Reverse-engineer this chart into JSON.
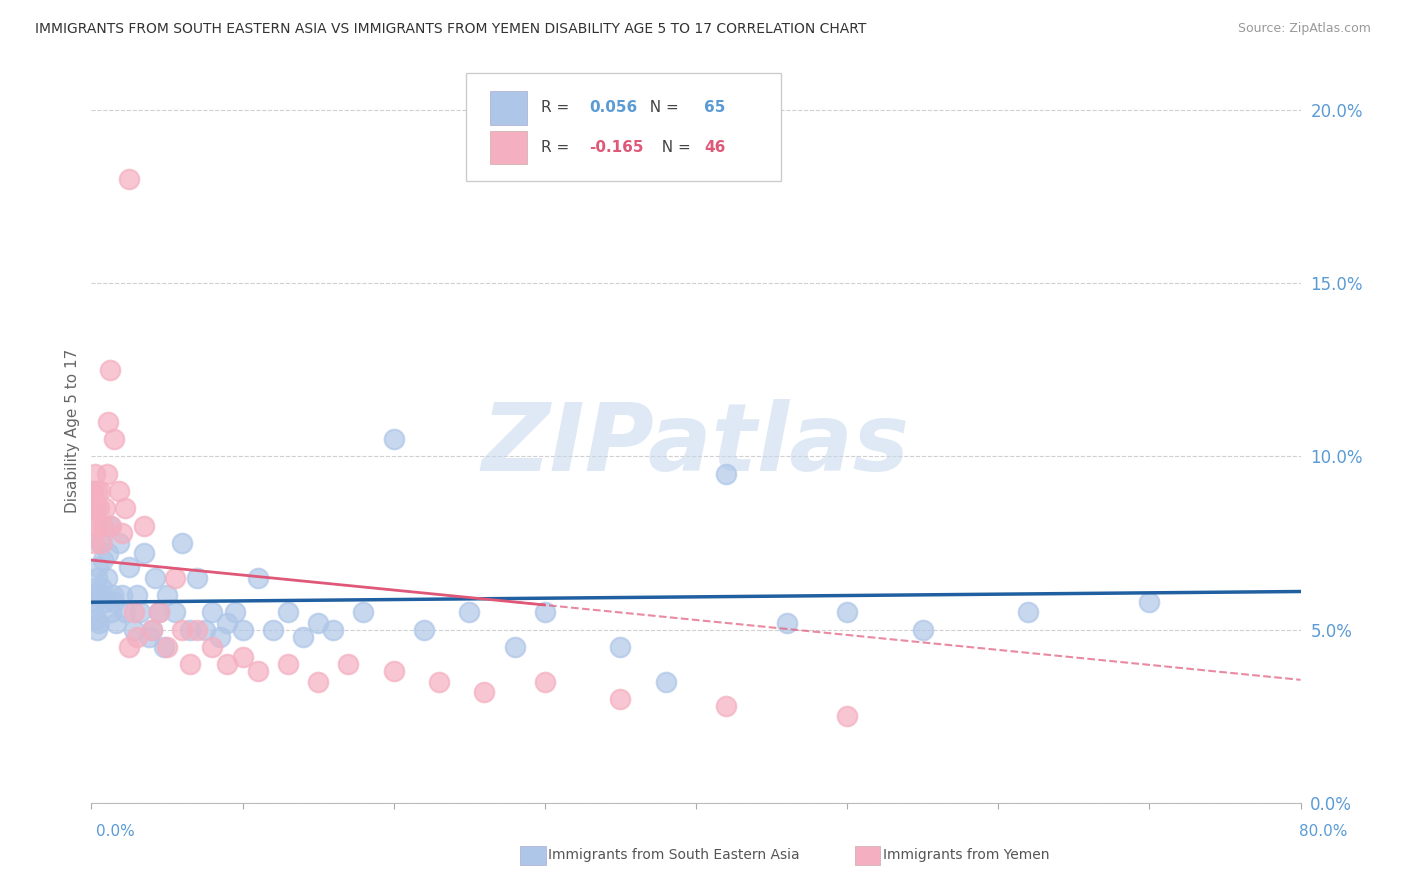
{
  "title": "IMMIGRANTS FROM SOUTH EASTERN ASIA VS IMMIGRANTS FROM YEMEN DISABILITY AGE 5 TO 17 CORRELATION CHART",
  "source": "Source: ZipAtlas.com",
  "ylabel": "Disability Age 5 to 17",
  "ytick_vals": [
    0.0,
    5.0,
    10.0,
    15.0,
    20.0
  ],
  "xlim": [
    0.0,
    80.0
  ],
  "ylim": [
    0.0,
    21.5
  ],
  "blue_R": 0.056,
  "blue_N": 65,
  "pink_R": -0.165,
  "pink_N": 46,
  "blue_color": "#aec6e8",
  "blue_line_color": "#2060a0",
  "pink_color": "#f4afc0",
  "pink_line_color": "#e05878",
  "watermark_text": "ZIPatlas",
  "legend_blue_label": "Immigrants from South Eastern Asia",
  "legend_pink_label": "Immigrants from Yemen",
  "blue_scatter_x": [
    0.1,
    0.15,
    0.2,
    0.25,
    0.3,
    0.35,
    0.4,
    0.45,
    0.5,
    0.55,
    0.6,
    0.7,
    0.8,
    0.9,
    1.0,
    1.1,
    1.2,
    1.3,
    1.4,
    1.5,
    1.6,
    1.8,
    2.0,
    2.2,
    2.5,
    2.8,
    3.0,
    3.2,
    3.5,
    3.8,
    4.0,
    4.2,
    4.5,
    4.8,
    5.0,
    5.5,
    6.0,
    6.5,
    7.0,
    7.5,
    8.0,
    8.5,
    9.0,
    9.5,
    10.0,
    11.0,
    12.0,
    13.0,
    14.0,
    15.0,
    16.0,
    18.0,
    20.0,
    22.0,
    25.0,
    28.0,
    30.0,
    35.0,
    38.0,
    42.0,
    46.0,
    50.0,
    55.0,
    62.0,
    70.0
  ],
  "blue_scatter_y": [
    5.5,
    6.0,
    5.8,
    6.2,
    5.3,
    6.5,
    5.0,
    6.8,
    5.2,
    6.0,
    7.5,
    6.2,
    7.0,
    5.8,
    6.5,
    7.2,
    8.0,
    5.5,
    6.0,
    5.8,
    5.2,
    7.5,
    6.0,
    5.5,
    6.8,
    5.0,
    6.0,
    5.5,
    7.2,
    4.8,
    5.0,
    6.5,
    5.5,
    4.5,
    6.0,
    5.5,
    7.5,
    5.0,
    6.5,
    5.0,
    5.5,
    4.8,
    5.2,
    5.5,
    5.0,
    6.5,
    5.0,
    5.5,
    4.8,
    5.2,
    5.0,
    5.5,
    10.5,
    5.0,
    5.5,
    4.5,
    5.5,
    4.5,
    3.5,
    9.5,
    5.2,
    5.5,
    5.0,
    5.5,
    5.8
  ],
  "pink_scatter_x": [
    0.05,
    0.1,
    0.15,
    0.2,
    0.25,
    0.3,
    0.35,
    0.4,
    0.5,
    0.6,
    0.7,
    0.8,
    0.9,
    1.0,
    1.1,
    1.2,
    1.3,
    1.5,
    1.8,
    2.0,
    2.2,
    2.5,
    2.8,
    3.0,
    3.5,
    4.0,
    4.5,
    5.0,
    5.5,
    6.0,
    6.5,
    7.0,
    8.0,
    9.0,
    10.0,
    11.0,
    13.0,
    15.0,
    17.0,
    20.0,
    23.0,
    26.0,
    30.0,
    35.0,
    42.0,
    50.0
  ],
  "pink_scatter_y": [
    8.5,
    9.0,
    8.0,
    7.5,
    9.5,
    8.5,
    9.0,
    8.0,
    8.5,
    9.0,
    7.5,
    8.0,
    8.5,
    9.5,
    11.0,
    12.5,
    8.0,
    10.5,
    9.0,
    7.8,
    8.5,
    4.5,
    5.5,
    4.8,
    8.0,
    5.0,
    5.5,
    4.5,
    6.5,
    5.0,
    4.0,
    5.0,
    4.5,
    4.0,
    4.2,
    3.8,
    4.0,
    3.5,
    4.0,
    3.8,
    3.5,
    3.2,
    3.5,
    3.0,
    2.8,
    2.5
  ],
  "pink_outlier_x": 2.5,
  "pink_outlier_y": 18.0,
  "background_color": "#ffffff",
  "grid_color": "#d0d0d0",
  "axis_color": "#5b9bd5",
  "axis_color_right": "#5b9bd5"
}
